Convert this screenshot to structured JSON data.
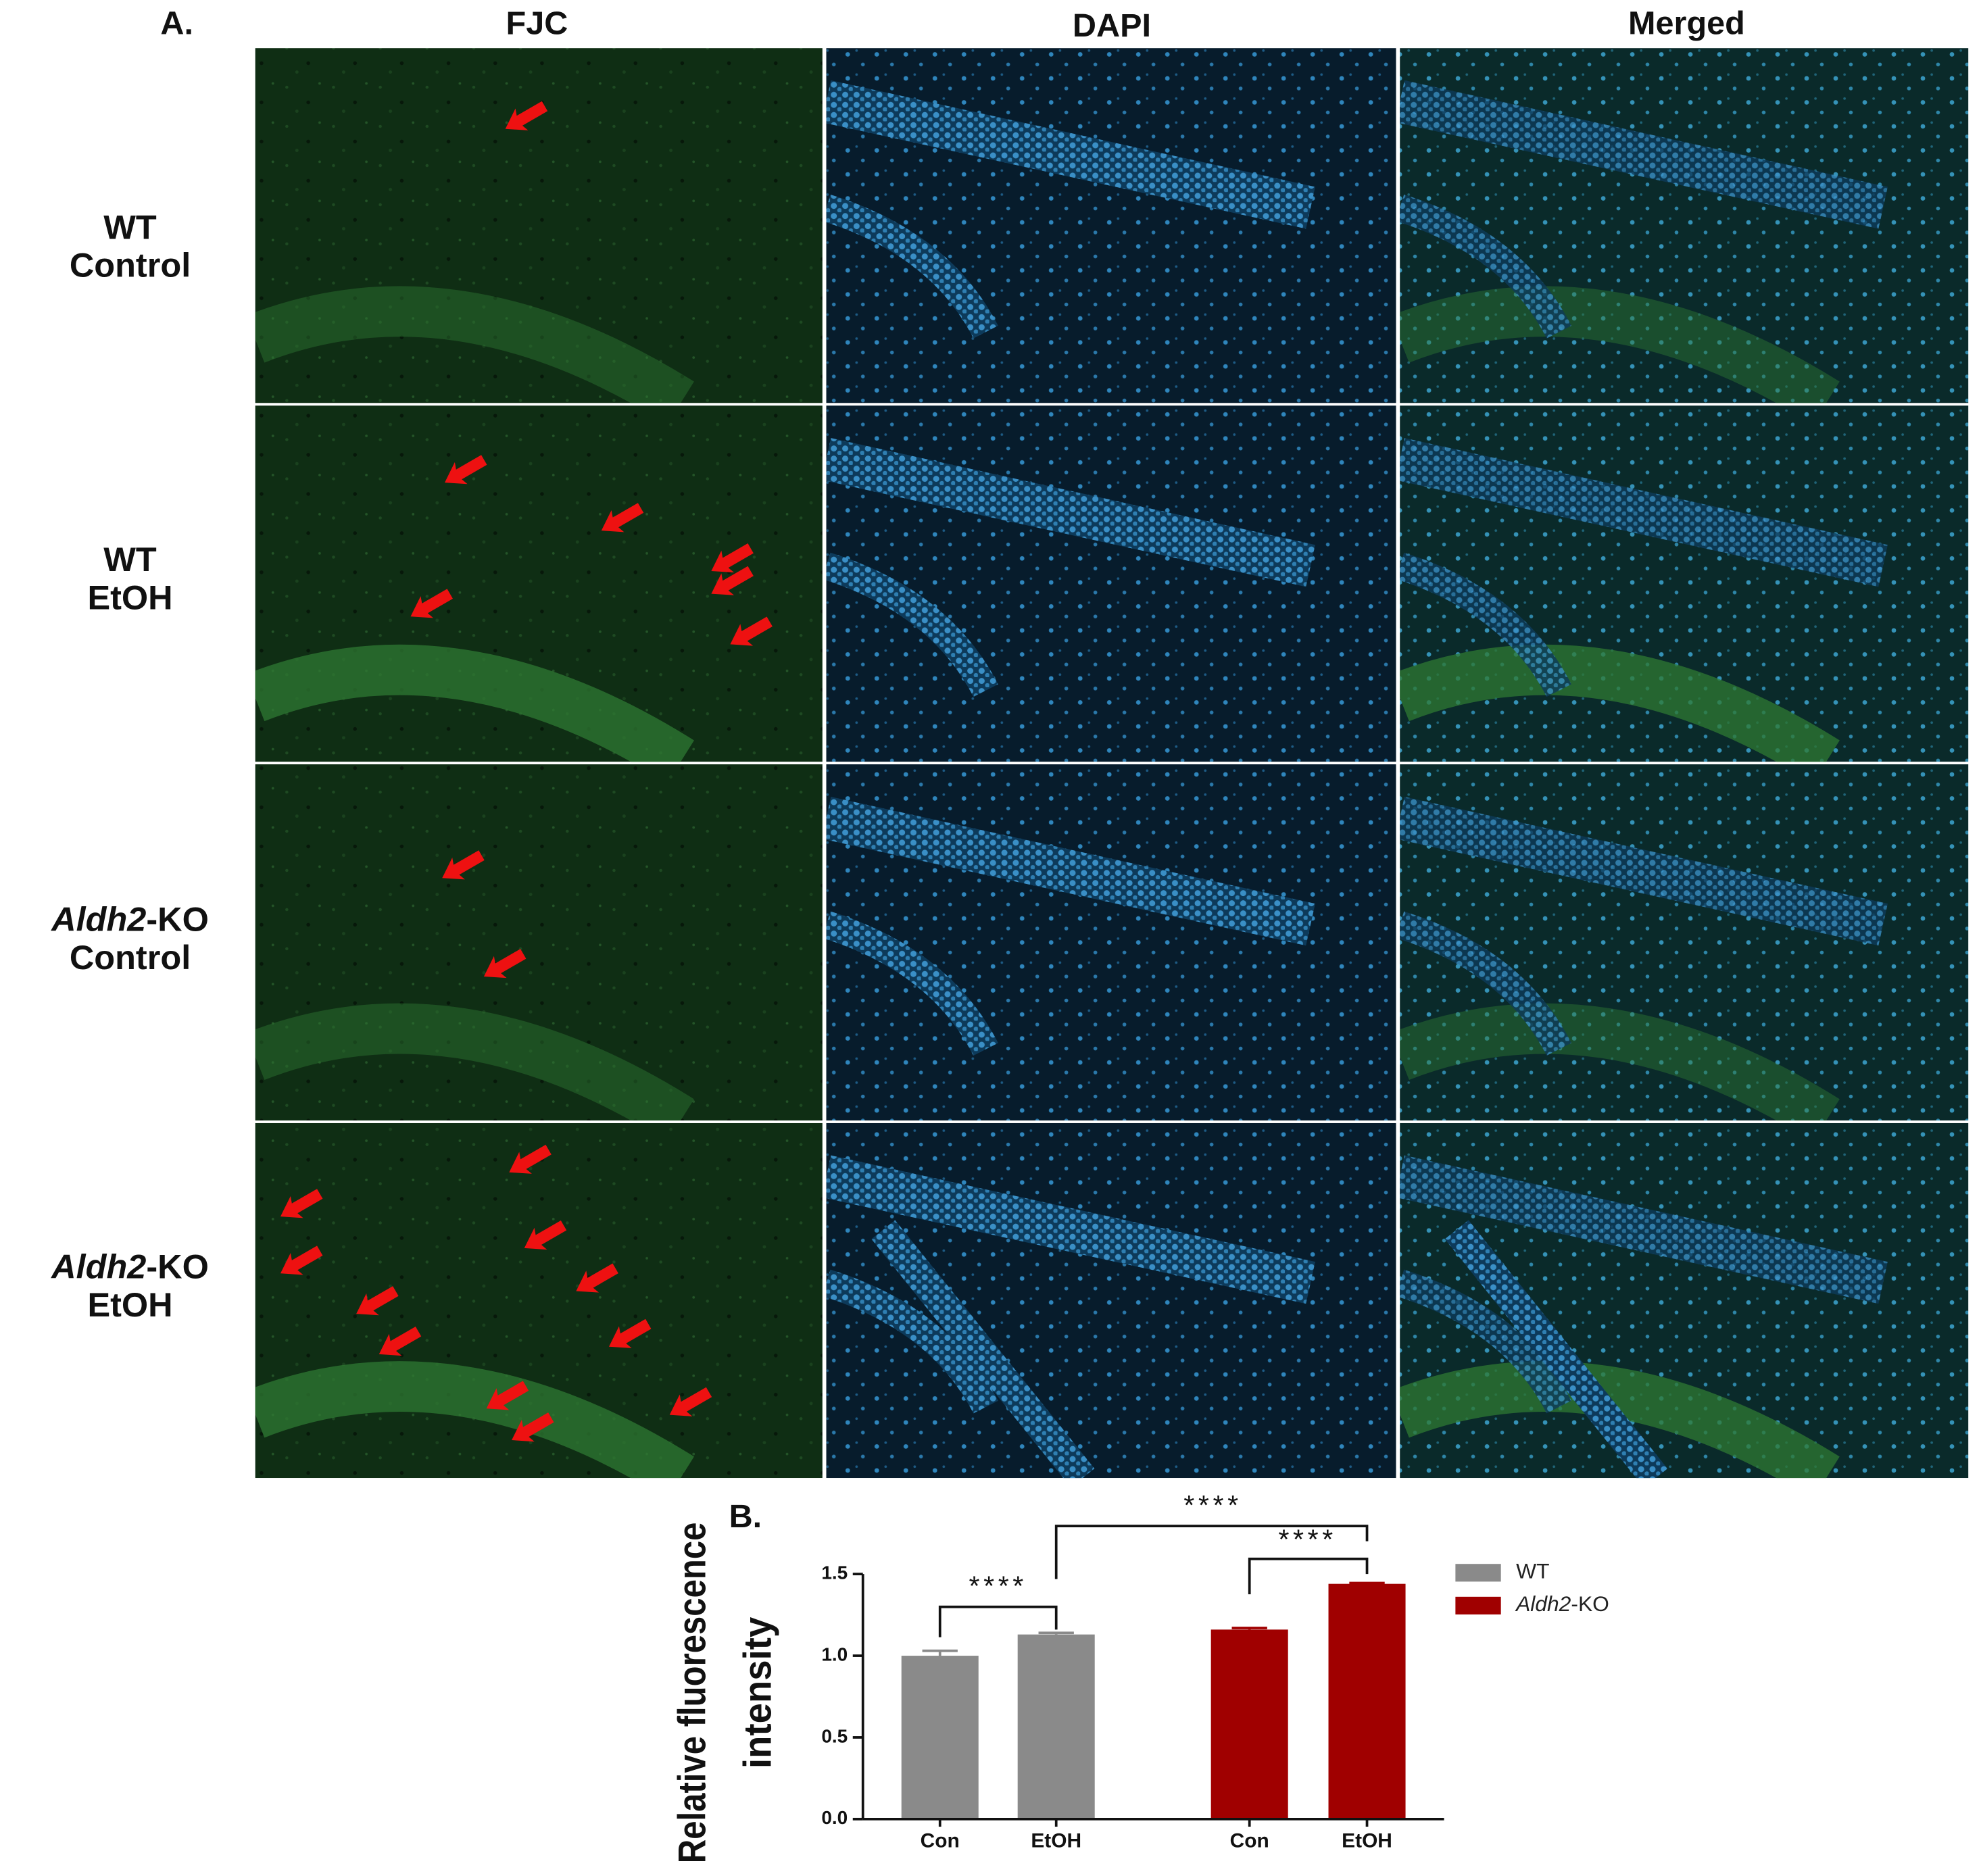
{
  "panel_a": {
    "label": "A.",
    "columns": [
      "FJC",
      "DAPI",
      "Merged"
    ],
    "rows": [
      {
        "line1": "WT",
        "line2": "Control"
      },
      {
        "line1": "WT",
        "line2": "EtOH"
      },
      {
        "line1": "Aldh2-KO",
        "line2": "Control"
      },
      {
        "line1": "Aldh2-KO",
        "line2": "EtOH"
      }
    ]
  },
  "chart_data": {
    "type": "bar",
    "panel_label": "B.",
    "ylabel": [
      "Relative fluorescence",
      "intensity"
    ],
    "categories": [
      "Con",
      "EtOH",
      "Con",
      "EtOH"
    ],
    "series": [
      {
        "name": "WT",
        "color": "#8a8a8a",
        "values": [
          1.0,
          1.13,
          null,
          null
        ],
        "errors": [
          0.03,
          0.01,
          null,
          null
        ]
      },
      {
        "name": "Aldh2-KO",
        "color": "#a00000",
        "values": [
          null,
          null,
          1.16,
          1.44
        ],
        "errors": [
          null,
          null,
          0.01,
          0.005
        ]
      }
    ],
    "ylim": [
      0,
      1.5
    ],
    "yticks": [
      {
        "value": 0,
        "label": "0.0"
      },
      {
        "value": 0.5,
        "label": "0.5"
      },
      {
        "value": 1,
        "label": "1.0"
      },
      {
        "value": 1.5,
        "label": "1.5"
      }
    ],
    "annotations": [
      "****",
      "****",
      "****"
    ],
    "legend": "right"
  }
}
